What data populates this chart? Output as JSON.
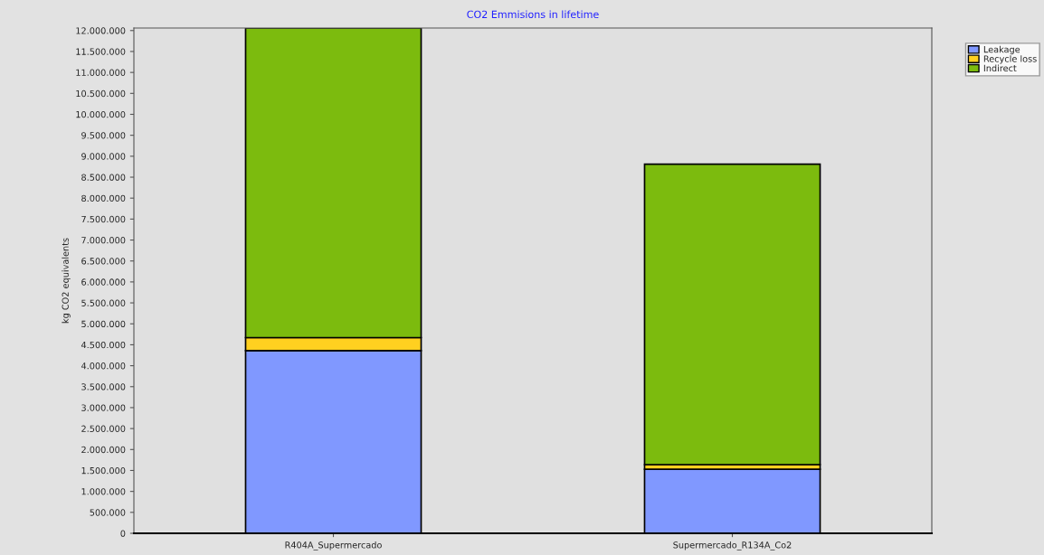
{
  "chart_data": {
    "type": "bar",
    "title": "CO2 Emmisions in lifetime",
    "ylabel": "kg CO2 equivalents",
    "categories": [
      "R404A_Supermercado",
      "Supermercado_R134A_Co2"
    ],
    "stacked": true,
    "series": [
      {
        "name": "Leakage",
        "color": "#8098ff",
        "values": [
          4360000,
          1530000
        ]
      },
      {
        "name": "Recycle loss",
        "color": "#ffd020",
        "values": [
          310000,
          110000
        ]
      },
      {
        "name": "Indirect",
        "color": "#7cbb0e",
        "values": [
          7390000,
          7170000
        ]
      }
    ],
    "ylim": [
      0,
      12060000
    ],
    "yticks": [
      {
        "value": 0,
        "label": "0"
      },
      {
        "value": 500000,
        "label": "500.000"
      },
      {
        "value": 1000000,
        "label": "1.000.000"
      },
      {
        "value": 1500000,
        "label": "1.500.000"
      },
      {
        "value": 2000000,
        "label": "2.000.000"
      },
      {
        "value": 2500000,
        "label": "2.500.000"
      },
      {
        "value": 3000000,
        "label": "3.000.000"
      },
      {
        "value": 3500000,
        "label": "3.500.000"
      },
      {
        "value": 4000000,
        "label": "4.000.000"
      },
      {
        "value": 4500000,
        "label": "4.500.000"
      },
      {
        "value": 5000000,
        "label": "5.000.000"
      },
      {
        "value": 5500000,
        "label": "5.500.000"
      },
      {
        "value": 6000000,
        "label": "6.000.000"
      },
      {
        "value": 6500000,
        "label": "6.500.000"
      },
      {
        "value": 7000000,
        "label": "7.000.000"
      },
      {
        "value": 7500000,
        "label": "7.500.000"
      },
      {
        "value": 8000000,
        "label": "8.000.000"
      },
      {
        "value": 8500000,
        "label": "8.500.000"
      },
      {
        "value": 9000000,
        "label": "9.000.000"
      },
      {
        "value": 9500000,
        "label": "9.500.000"
      },
      {
        "value": 10000000,
        "label": "10.000.000"
      },
      {
        "value": 10500000,
        "label": "10.500.000"
      },
      {
        "value": 11000000,
        "label": "11.000.000"
      },
      {
        "value": 11500000,
        "label": "11.500.000"
      },
      {
        "value": 12000000,
        "label": "12.000.000"
      }
    ],
    "legend": "top right",
    "grid": false
  }
}
